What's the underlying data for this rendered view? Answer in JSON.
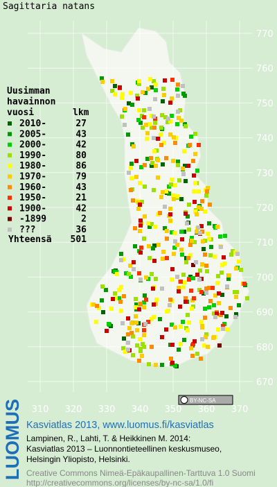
{
  "title": "Sagittaria natans",
  "legend": {
    "heading": [
      "Uusimman",
      "havainnon",
      "vuosi"
    ],
    "count_heading": "lkm",
    "rows": [
      {
        "label": "2010-",
        "count": 27,
        "color": "#006400"
      },
      {
        "label": "2005-",
        "count": 43,
        "color": "#009a00"
      },
      {
        "label": "2000-",
        "count": 42,
        "color": "#00d000"
      },
      {
        "label": "1990-",
        "count": 80,
        "color": "#9be000"
      },
      {
        "label": "1980-",
        "count": 86,
        "color": "#ffff00"
      },
      {
        "label": "1970-",
        "count": 79,
        "color": "#ffcc00"
      },
      {
        "label": "1960-",
        "count": 43,
        "color": "#ff8c00"
      },
      {
        "label": "1950-",
        "count": 21,
        "color": "#ff3000"
      },
      {
        "label": "1900-",
        "count": 42,
        "color": "#cc0000"
      },
      {
        "label": "-1899",
        "count": 2,
        "color": "#7a0000"
      },
      {
        "label": "???",
        "count": 36,
        "color": "#c0c0c0"
      }
    ],
    "total_label": "Yhteensä",
    "total": 501
  },
  "grid": {
    "northing": [
      770,
      760,
      750,
      740,
      730,
      720,
      710,
      700,
      690,
      680,
      670
    ],
    "easting": [
      310,
      320,
      330,
      340,
      350,
      360,
      370
    ]
  },
  "badge": "BY-NC-SA",
  "logo": "LUOMUS",
  "footer": {
    "link": "Kasviatlas 2013, www.luomus.fi/kasviatlas",
    "citation": [
      "Lampinen, R., Lahti, T. & Heikkinen M. 2014:",
      "Kasviatlas 2013 – Luonnontieteellinen keskusmuseo,",
      "Helsingin Yliopisto, Helsinki."
    ],
    "license": [
      "Creative Commons Nimeä-Epäkaupallinen-Tarttuva 1.0 Suomi",
      "http://creativecommons.org/licenses/by-nc-sa/1.0/fi"
    ]
  }
}
